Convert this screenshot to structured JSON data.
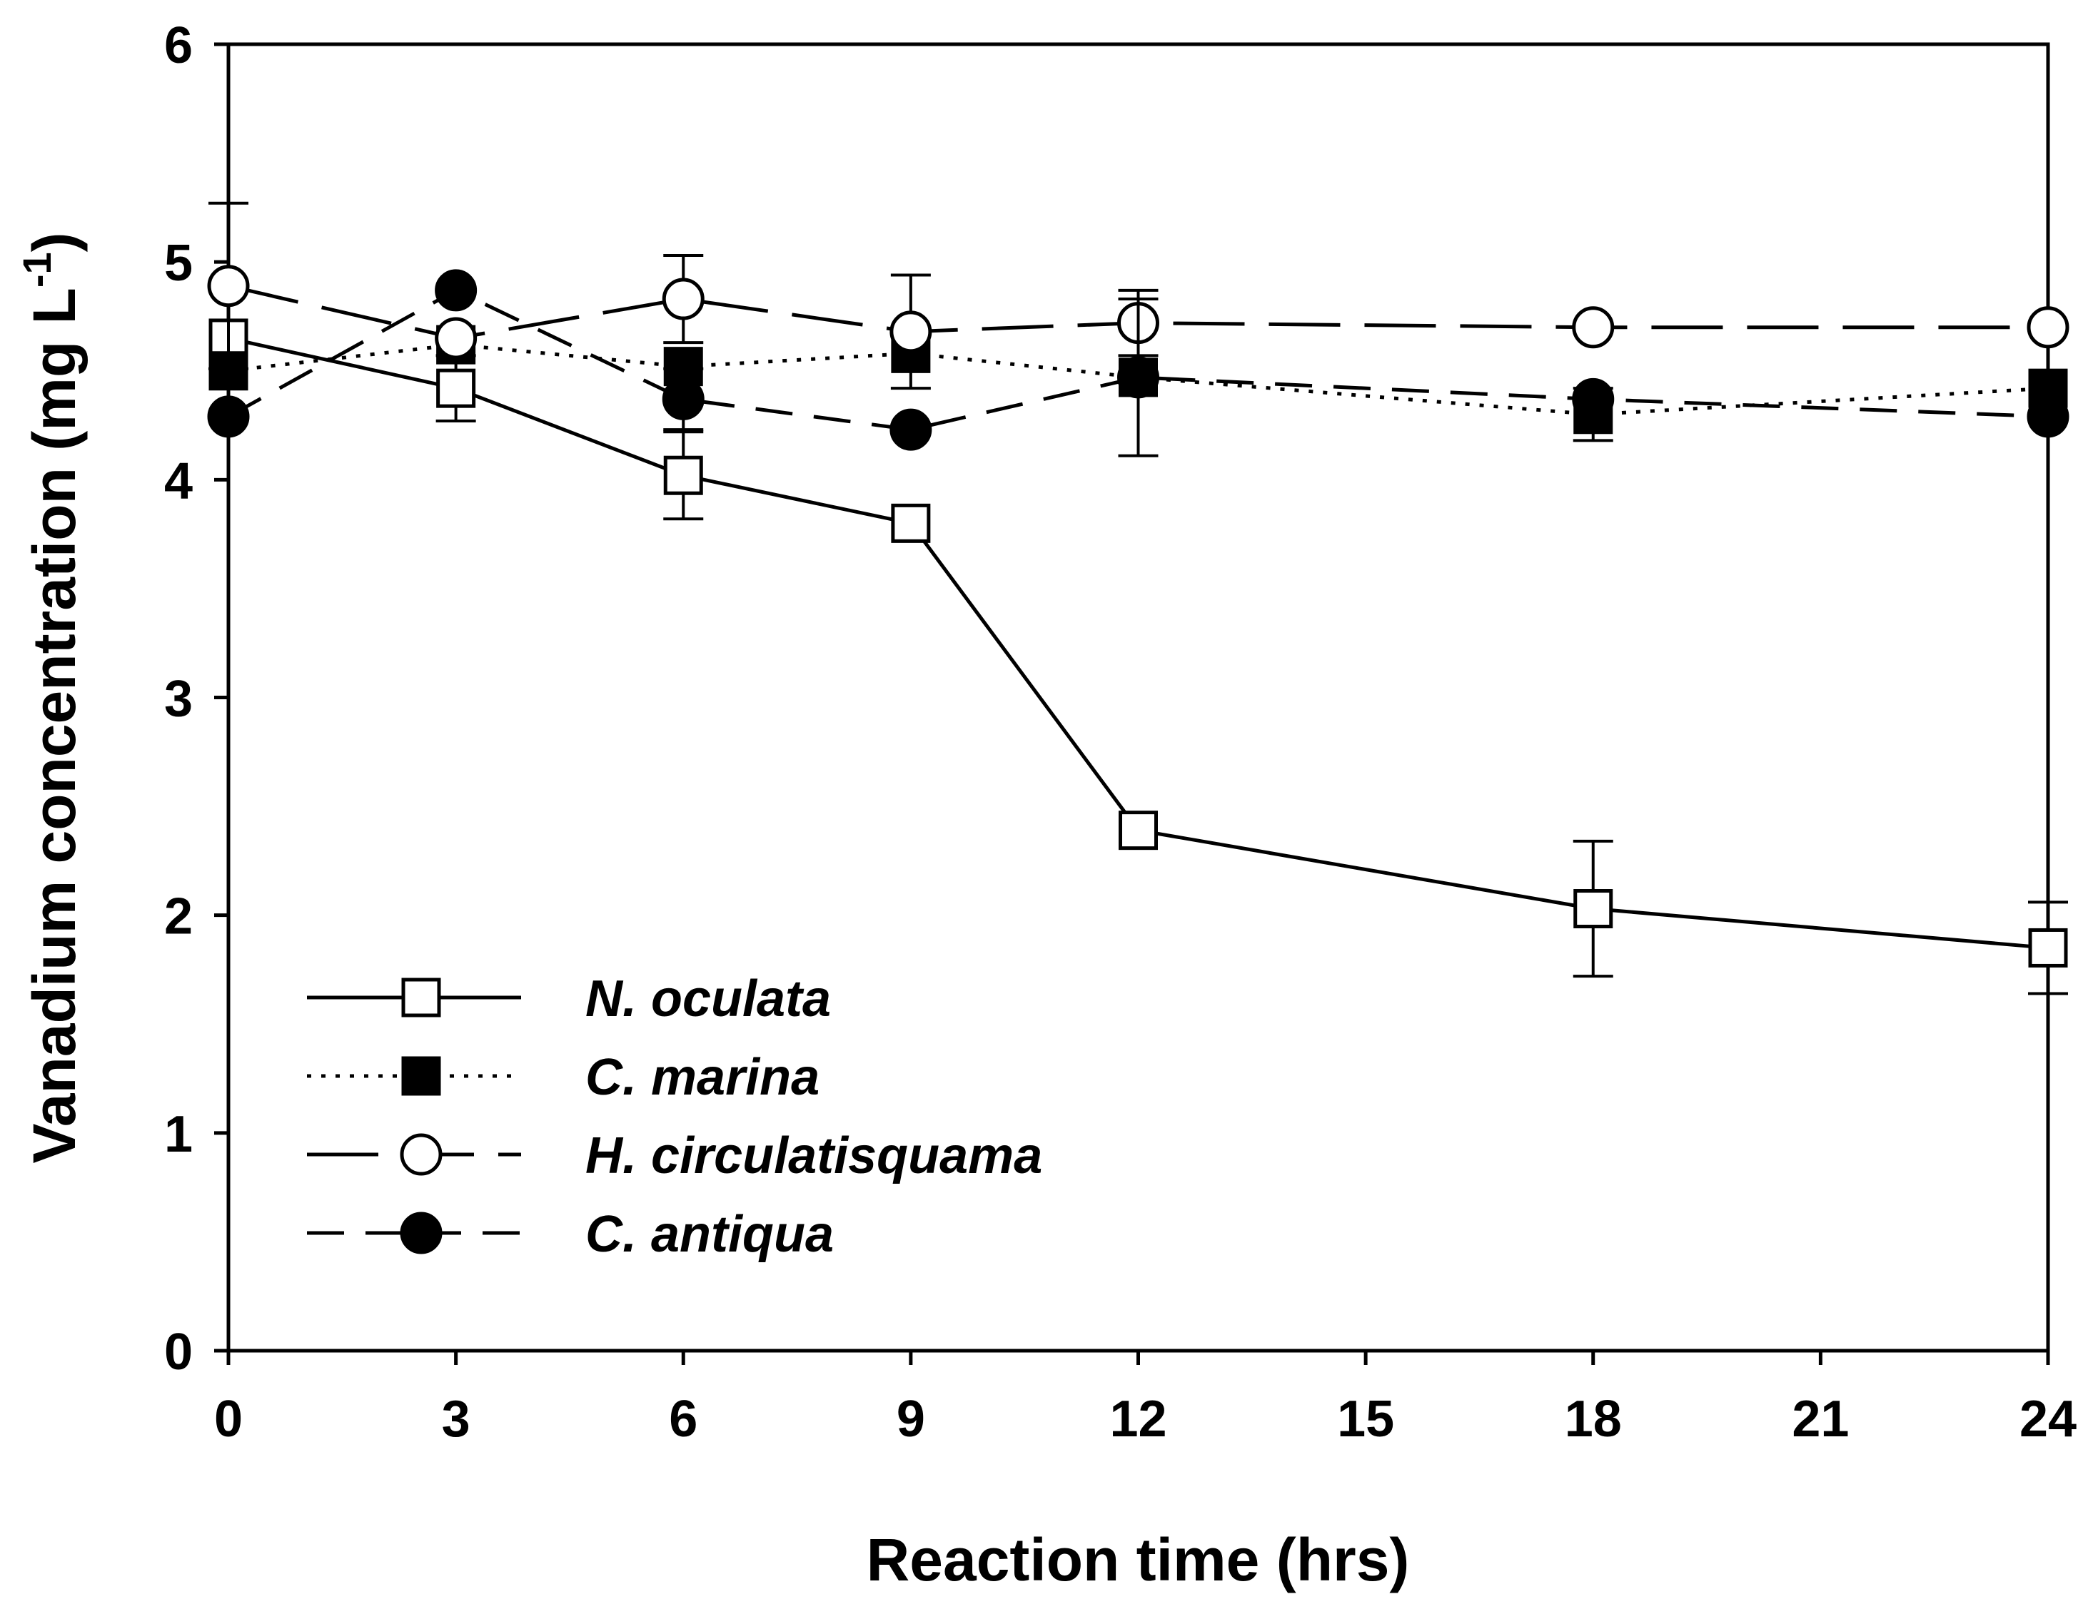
{
  "chart_data": {
    "type": "line",
    "xlabel": "Reaction time (hrs)",
    "ylabel_main": "Vanadium concentration (mg L",
    "ylabel_sup": "-1",
    "ylabel_close": ")",
    "xlim": [
      0,
      24
    ],
    "ylim": [
      0,
      6
    ],
    "xticks": [
      0,
      3,
      6,
      9,
      12,
      15,
      18,
      21,
      24
    ],
    "yticks": [
      0,
      1,
      2,
      3,
      4,
      5,
      6
    ],
    "grid": false,
    "legend_position": "lower-left",
    "x": [
      0,
      3,
      6,
      9,
      12,
      18,
      24
    ],
    "series": [
      {
        "name": "N. oculata",
        "marker": "square-open",
        "line": "solid",
        "values": [
          4.65,
          4.42,
          4.02,
          3.8,
          2.39,
          2.03,
          1.85
        ],
        "errors": [
          0.0,
          0.15,
          0.2,
          0.0,
          0.0,
          0.31,
          0.21
        ]
      },
      {
        "name": "C. marina",
        "marker": "square-filled",
        "line": "dotted",
        "values": [
          4.5,
          4.62,
          4.52,
          4.58,
          4.47,
          4.3,
          4.42
        ],
        "errors": [
          0.0,
          0.0,
          0.0,
          0.0,
          0.0,
          0.12,
          0.0
        ]
      },
      {
        "name": "H. circulatisquama",
        "marker": "circle-open",
        "line": "long-dash",
        "values": [
          4.89,
          4.65,
          4.83,
          4.68,
          4.72,
          4.7,
          4.7
        ],
        "errors": [
          0.38,
          0.0,
          0.2,
          0.26,
          0.15,
          0.0,
          0.0
        ]
      },
      {
        "name": "C. antiqua",
        "marker": "circle-filled",
        "line": "dash",
        "values": [
          4.29,
          4.87,
          4.37,
          4.23,
          4.47,
          4.37,
          4.29
        ],
        "errors": [
          0.0,
          0.0,
          0.14,
          0.0,
          0.36,
          0.0,
          0.0
        ]
      }
    ]
  }
}
